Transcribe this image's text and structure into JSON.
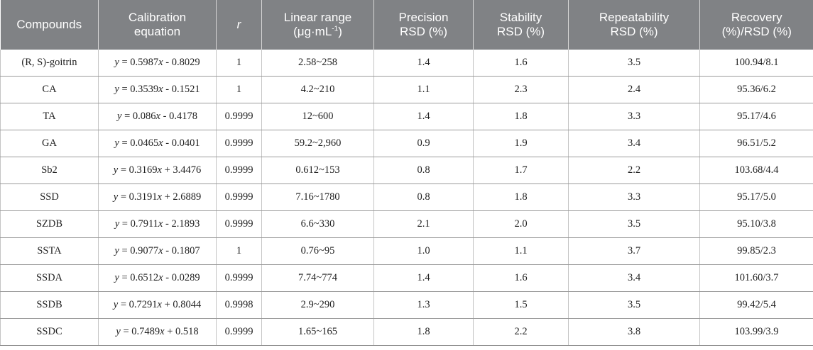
{
  "headers": [
    {
      "line1": "Compounds",
      "line2": ""
    },
    {
      "line1": "Calibration",
      "line2": "equation"
    },
    {
      "line1": "r",
      "line2": ""
    },
    {
      "line1": "Linear range",
      "line2": "(μg·mL",
      "sup": "-1",
      "tail": ")"
    },
    {
      "line1": "Precision",
      "line2": "RSD (%)"
    },
    {
      "line1": "Stability",
      "line2": "RSD (%)"
    },
    {
      "line1": "Repeatability",
      "line2": "RSD (%)"
    },
    {
      "line1": "Recovery",
      "line2": "(%)/RSD (%)"
    }
  ],
  "rows": [
    {
      "compound": "(R, S)-goitrin",
      "slope": "0.5987",
      "sign": "-",
      "intercept": "0.8029",
      "r": "1",
      "range": "2.58~258",
      "precision": "1.4",
      "stability": "1.6",
      "repeatability": "3.5",
      "recovery": "100.94/8.1"
    },
    {
      "compound": "CA",
      "slope": "0.3539",
      "sign": "-",
      "intercept": "0.1521",
      "r": "1",
      "range": "4.2~210",
      "precision": "1.1",
      "stability": "2.3",
      "repeatability": "2.4",
      "recovery": "95.36/6.2"
    },
    {
      "compound": "TA",
      "slope": "0.086",
      "sign": "-",
      "intercept": "0.4178",
      "r": "0.9999",
      "range": "12~600",
      "precision": "1.4",
      "stability": "1.8",
      "repeatability": "3.3",
      "recovery": "95.17/4.6"
    },
    {
      "compound": "GA",
      "slope": "0.0465",
      "sign": "-",
      "intercept": "0.0401",
      "r": "0.9999",
      "range": "59.2~2,960",
      "precision": "0.9",
      "stability": "1.9",
      "repeatability": "3.4",
      "recovery": "96.51/5.2"
    },
    {
      "compound": "Sb2",
      "slope": "0.3169",
      "sign": "+",
      "intercept": "3.4476",
      "r": "0.9999",
      "range": "0.612~153",
      "precision": "0.8",
      "stability": "1.7",
      "repeatability": "2.2",
      "recovery": "103.68/4.4"
    },
    {
      "compound": "SSD",
      "slope": "0.3191",
      "sign": "+",
      "intercept": "2.6889",
      "r": "0.9999",
      "range": "7.16~1780",
      "precision": "0.8",
      "stability": "1.8",
      "repeatability": "3.3",
      "recovery": "95.17/5.0"
    },
    {
      "compound": "SZDB",
      "slope": "0.7911",
      "sign": "-",
      "intercept": "2.1893",
      "r": "0.9999",
      "range": "6.6~330",
      "precision": "2.1",
      "stability": "2.0",
      "repeatability": "3.5",
      "recovery": "95.10/3.8"
    },
    {
      "compound": "SSTA",
      "slope": "0.9077",
      "sign": "-",
      "intercept": "0.1807",
      "r": "1",
      "range": "0.76~95",
      "precision": "1.0",
      "stability": "1.1",
      "repeatability": "3.7",
      "recovery": "99.85/2.3"
    },
    {
      "compound": "SSDA",
      "slope": "0.6512",
      "sign": "-",
      "intercept": "0.0289",
      "r": "0.9999",
      "range": "7.74~774",
      "precision": "1.4",
      "stability": "1.6",
      "repeatability": "3.4",
      "recovery": "101.60/3.7"
    },
    {
      "compound": "SSDB",
      "slope": "0.7291",
      "sign": "+",
      "intercept": "0.8044",
      "r": "0.9998",
      "range": "2.9~290",
      "precision": "1.3",
      "stability": "1.5",
      "repeatability": "3.5",
      "recovery": "99.42/5.4"
    },
    {
      "compound": "SSDC",
      "slope": "0.7489",
      "sign": "+",
      "intercept": "0.518",
      "r": "0.9999",
      "range": "1.65~165",
      "precision": "1.8",
      "stability": "2.2",
      "repeatability": "3.8",
      "recovery": "103.99/3.9"
    }
  ]
}
